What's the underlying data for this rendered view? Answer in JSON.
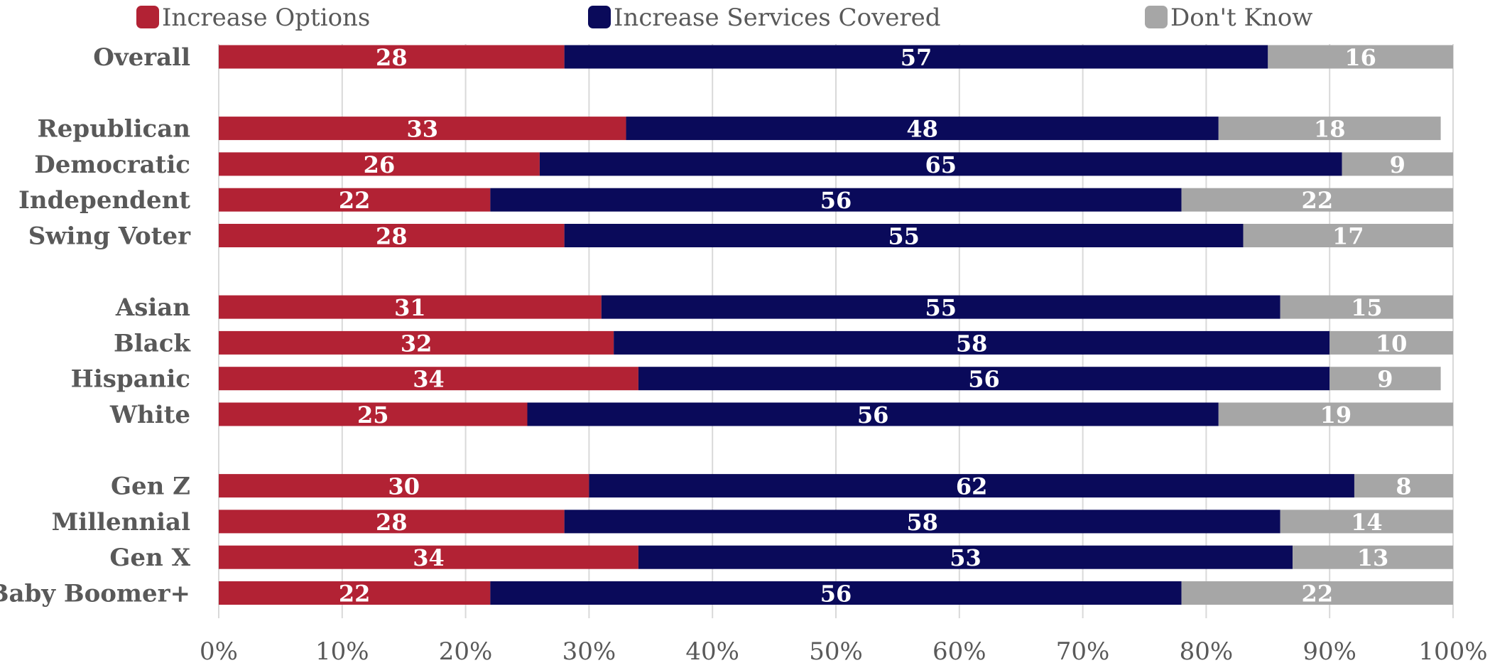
{
  "chart_data": {
    "type": "bar",
    "orientation": "horizontal",
    "stacked": true,
    "categories": [
      "Overall",
      "",
      "Republican",
      "Democratic",
      "Independent",
      "Swing Voter",
      "",
      "Asian",
      "Black",
      "Hispanic",
      "White",
      "",
      "Gen Z",
      "Millennial",
      "Gen X",
      "Baby Boomer+"
    ],
    "series": [
      {
        "name": "Increase Options",
        "color": "#b22234",
        "values": [
          28,
          null,
          33,
          26,
          22,
          28,
          null,
          31,
          32,
          34,
          25,
          null,
          30,
          28,
          34,
          22
        ]
      },
      {
        "name": "Increase Services Covered",
        "color": "#0a0a5a",
        "values": [
          57,
          null,
          48,
          65,
          56,
          55,
          null,
          55,
          58,
          56,
          56,
          null,
          62,
          58,
          53,
          56
        ]
      },
      {
        "name": "Don't Know",
        "color": "#a6a6a6",
        "values": [
          16,
          null,
          18,
          9,
          22,
          17,
          null,
          15,
          10,
          9,
          19,
          null,
          8,
          14,
          13,
          22
        ]
      }
    ],
    "xlim": [
      0,
      100
    ],
    "x_ticks": [
      "0%",
      "10%",
      "20%",
      "30%",
      "40%",
      "50%",
      "60%",
      "70%",
      "80%",
      "90%",
      "100%"
    ],
    "grid": true,
    "legend_position": "top",
    "title": "",
    "xlabel": "",
    "ylabel": ""
  }
}
